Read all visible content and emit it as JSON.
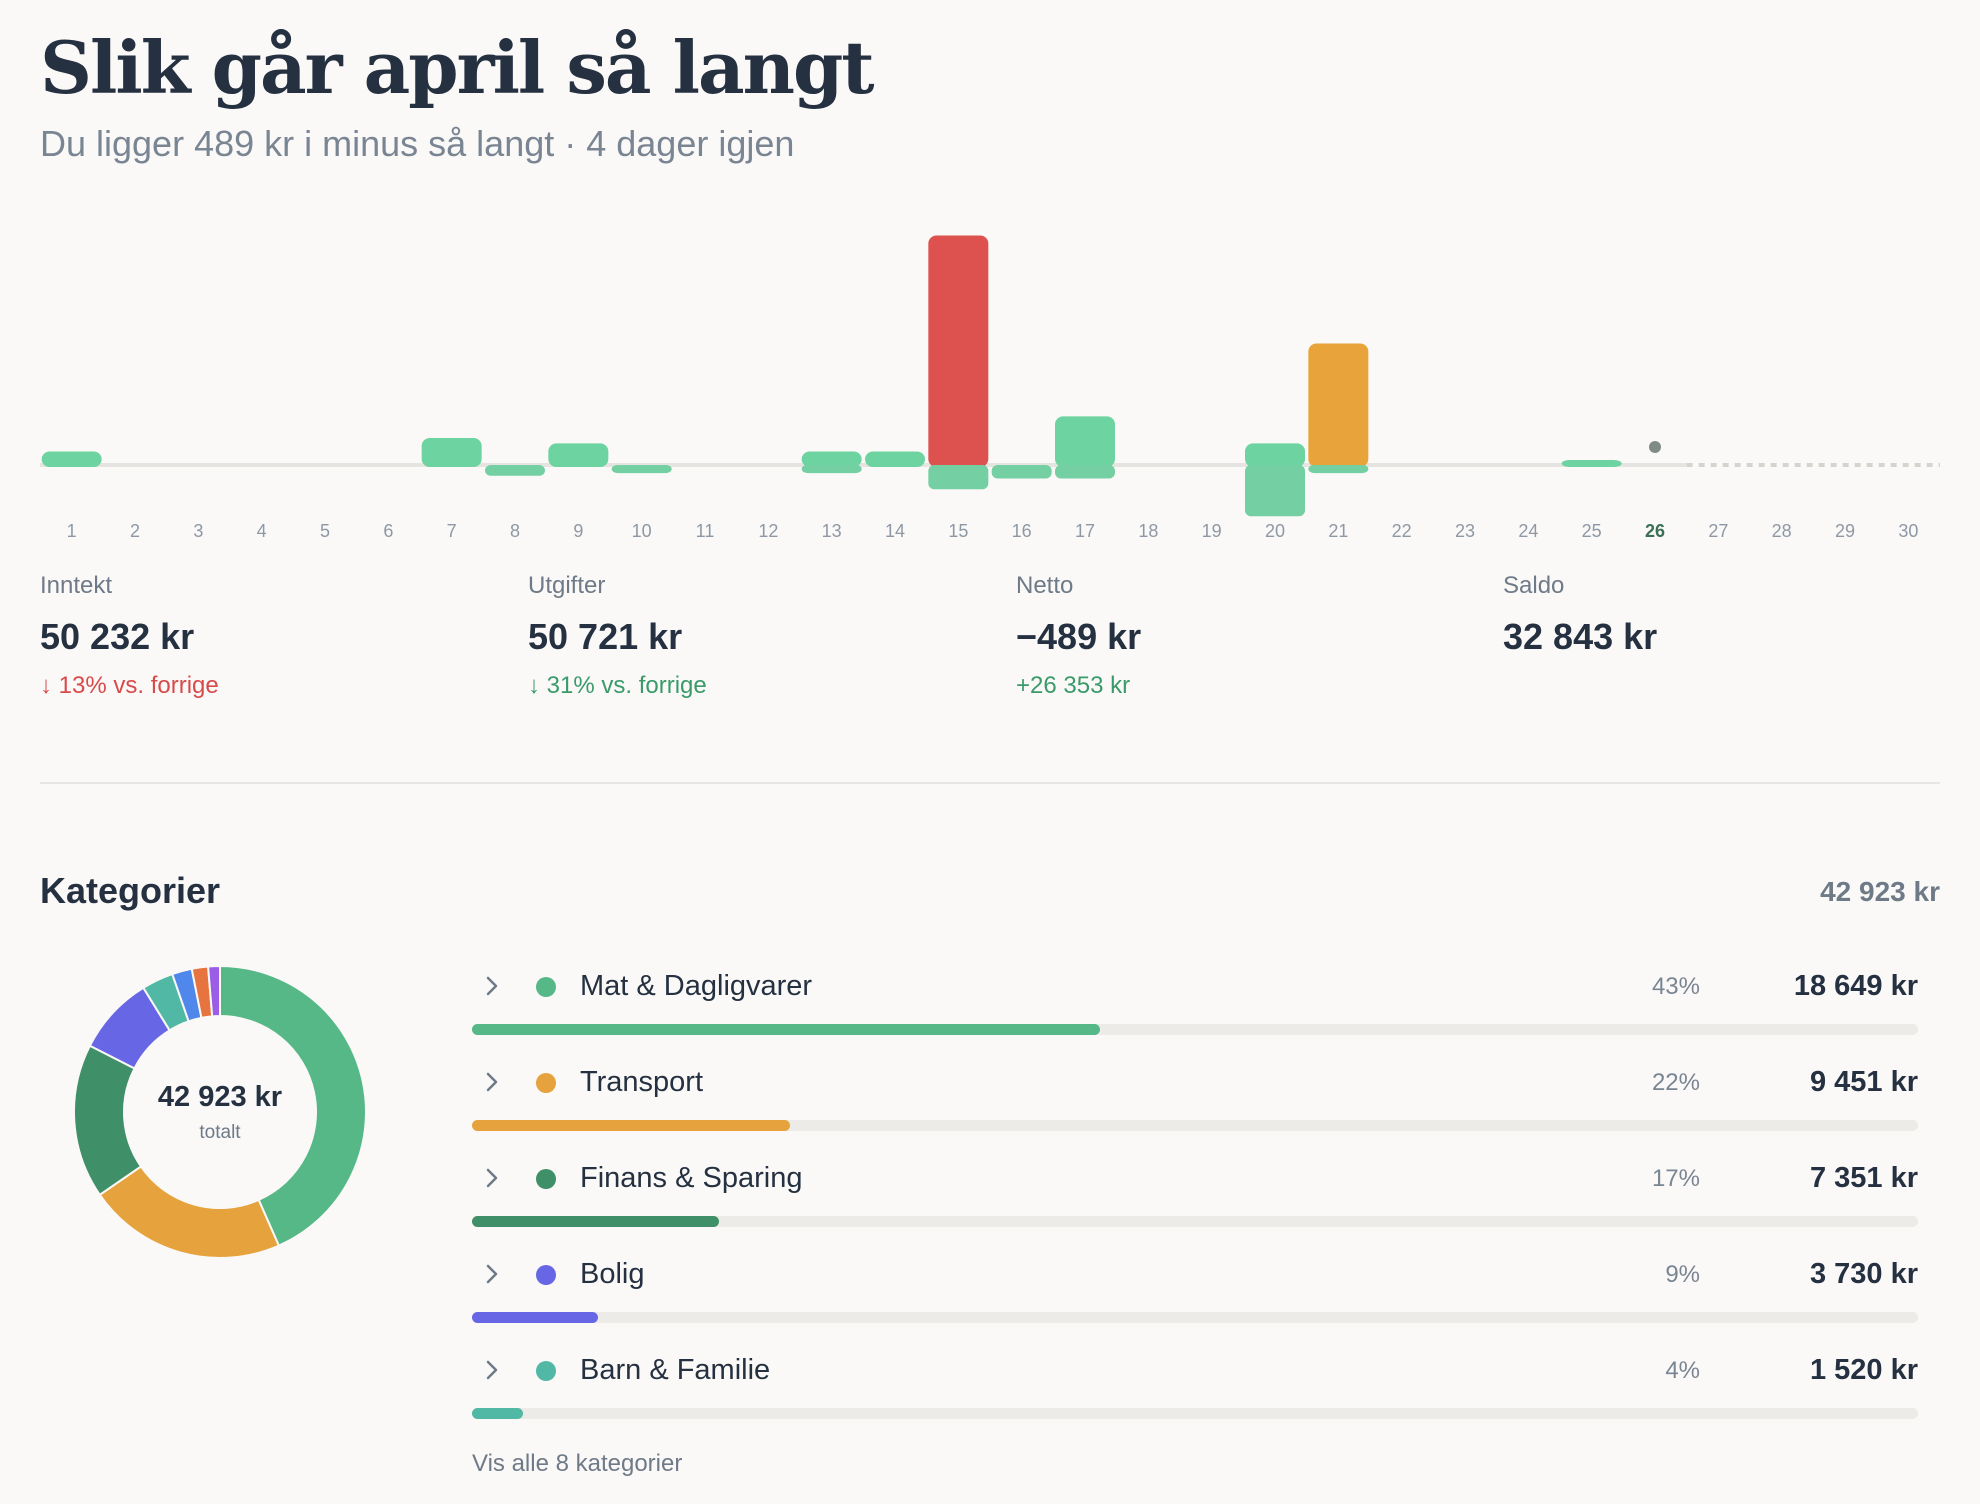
{
  "header": {
    "title": "Slik går april så langt",
    "subtitle": "Du ligger 489 kr i minus så langt · 4 dager igjen"
  },
  "colors": {
    "income_bar": "#6dd3a0",
    "expense_bar": "#74cfa2",
    "spike_red": "#dd524e",
    "spike_orange": "#e8a33b",
    "positive_text": "#3a9a6a",
    "negative_text": "#d74b4b"
  },
  "chart_data": {
    "type": "bar",
    "categories": [
      "1",
      "2",
      "3",
      "4",
      "5",
      "6",
      "7",
      "8",
      "9",
      "10",
      "11",
      "12",
      "13",
      "14",
      "15",
      "16",
      "17",
      "18",
      "19",
      "20",
      "21",
      "22",
      "23",
      "24",
      "25",
      "26",
      "27",
      "28",
      "29",
      "30"
    ],
    "today": "26",
    "series": [
      {
        "role": "up",
        "values": [
          0.5,
          0,
          0,
          0,
          0,
          0,
          1,
          0,
          0.8,
          0,
          0,
          0,
          0.5,
          0.5,
          8.5,
          0,
          1.8,
          0,
          0,
          0.8,
          4.5,
          0,
          0,
          0,
          0.1,
          0,
          0,
          0,
          0,
          0
        ],
        "colors": [
          "income",
          "",
          "",
          "",
          "",
          "",
          "income",
          "",
          "income",
          "",
          "",
          "",
          "income",
          "income",
          "red",
          "",
          "income",
          "",
          "",
          "income",
          "orange",
          "",
          "",
          "",
          "income",
          "",
          "",
          "",
          "",
          ""
        ]
      },
      {
        "role": "down",
        "values": [
          0,
          0,
          0,
          0,
          0,
          0,
          0,
          0.4,
          0,
          0.3,
          0,
          0,
          0.3,
          0,
          0.9,
          0.5,
          0.5,
          0,
          0,
          1.9,
          0.3,
          0,
          0,
          0,
          0,
          0,
          0,
          0,
          0,
          0
        ]
      }
    ],
    "future_from": "27"
  },
  "stats": [
    {
      "label": "Inntekt",
      "value": "50 232 kr",
      "change": "↓ 13% vs. forrige",
      "tone": "neg"
    },
    {
      "label": "Utgifter",
      "value": "50 721 kr",
      "change": "↓ 31% vs. forrige",
      "tone": "pos"
    },
    {
      "label": "Netto",
      "value": "−489 kr",
      "change": "+26 353 kr",
      "tone": "pos"
    },
    {
      "label": "Saldo",
      "value": "32 843 kr",
      "change": "",
      "tone": ""
    }
  ],
  "categories": {
    "heading": "Kategorier",
    "total": "42 923 kr",
    "donut_center_value": "42 923 kr",
    "donut_center_label": "totalt",
    "items": [
      {
        "name": "Mat & Dagligvarer",
        "pct": "43%",
        "amount": "18 649 kr",
        "share": 0.434,
        "color": "#56b886",
        "icon": "chevron-right-icon"
      },
      {
        "name": "Transport",
        "pct": "22%",
        "amount": "9 451 kr",
        "share": 0.22,
        "color": "#e6a23c",
        "icon": "chevron-right-icon"
      },
      {
        "name": "Finans & Sparing",
        "pct": "17%",
        "amount": "7 351 kr",
        "share": 0.171,
        "color": "#3f8f68",
        "icon": "chevron-right-icon"
      },
      {
        "name": "Bolig",
        "pct": "9%",
        "amount": "3 730 kr",
        "share": 0.087,
        "color": "#6767e6",
        "icon": "chevron-right-icon"
      },
      {
        "name": "Barn & Familie",
        "pct": "4%",
        "amount": "1 520 kr",
        "share": 0.035,
        "color": "#52b8a6",
        "icon": "chevron-right-icon"
      }
    ],
    "donut_extra_colors": [
      "#4f87ea",
      "#e7733e",
      "#9b5de5"
    ],
    "show_all": "Vis alle 8 kategorier"
  }
}
